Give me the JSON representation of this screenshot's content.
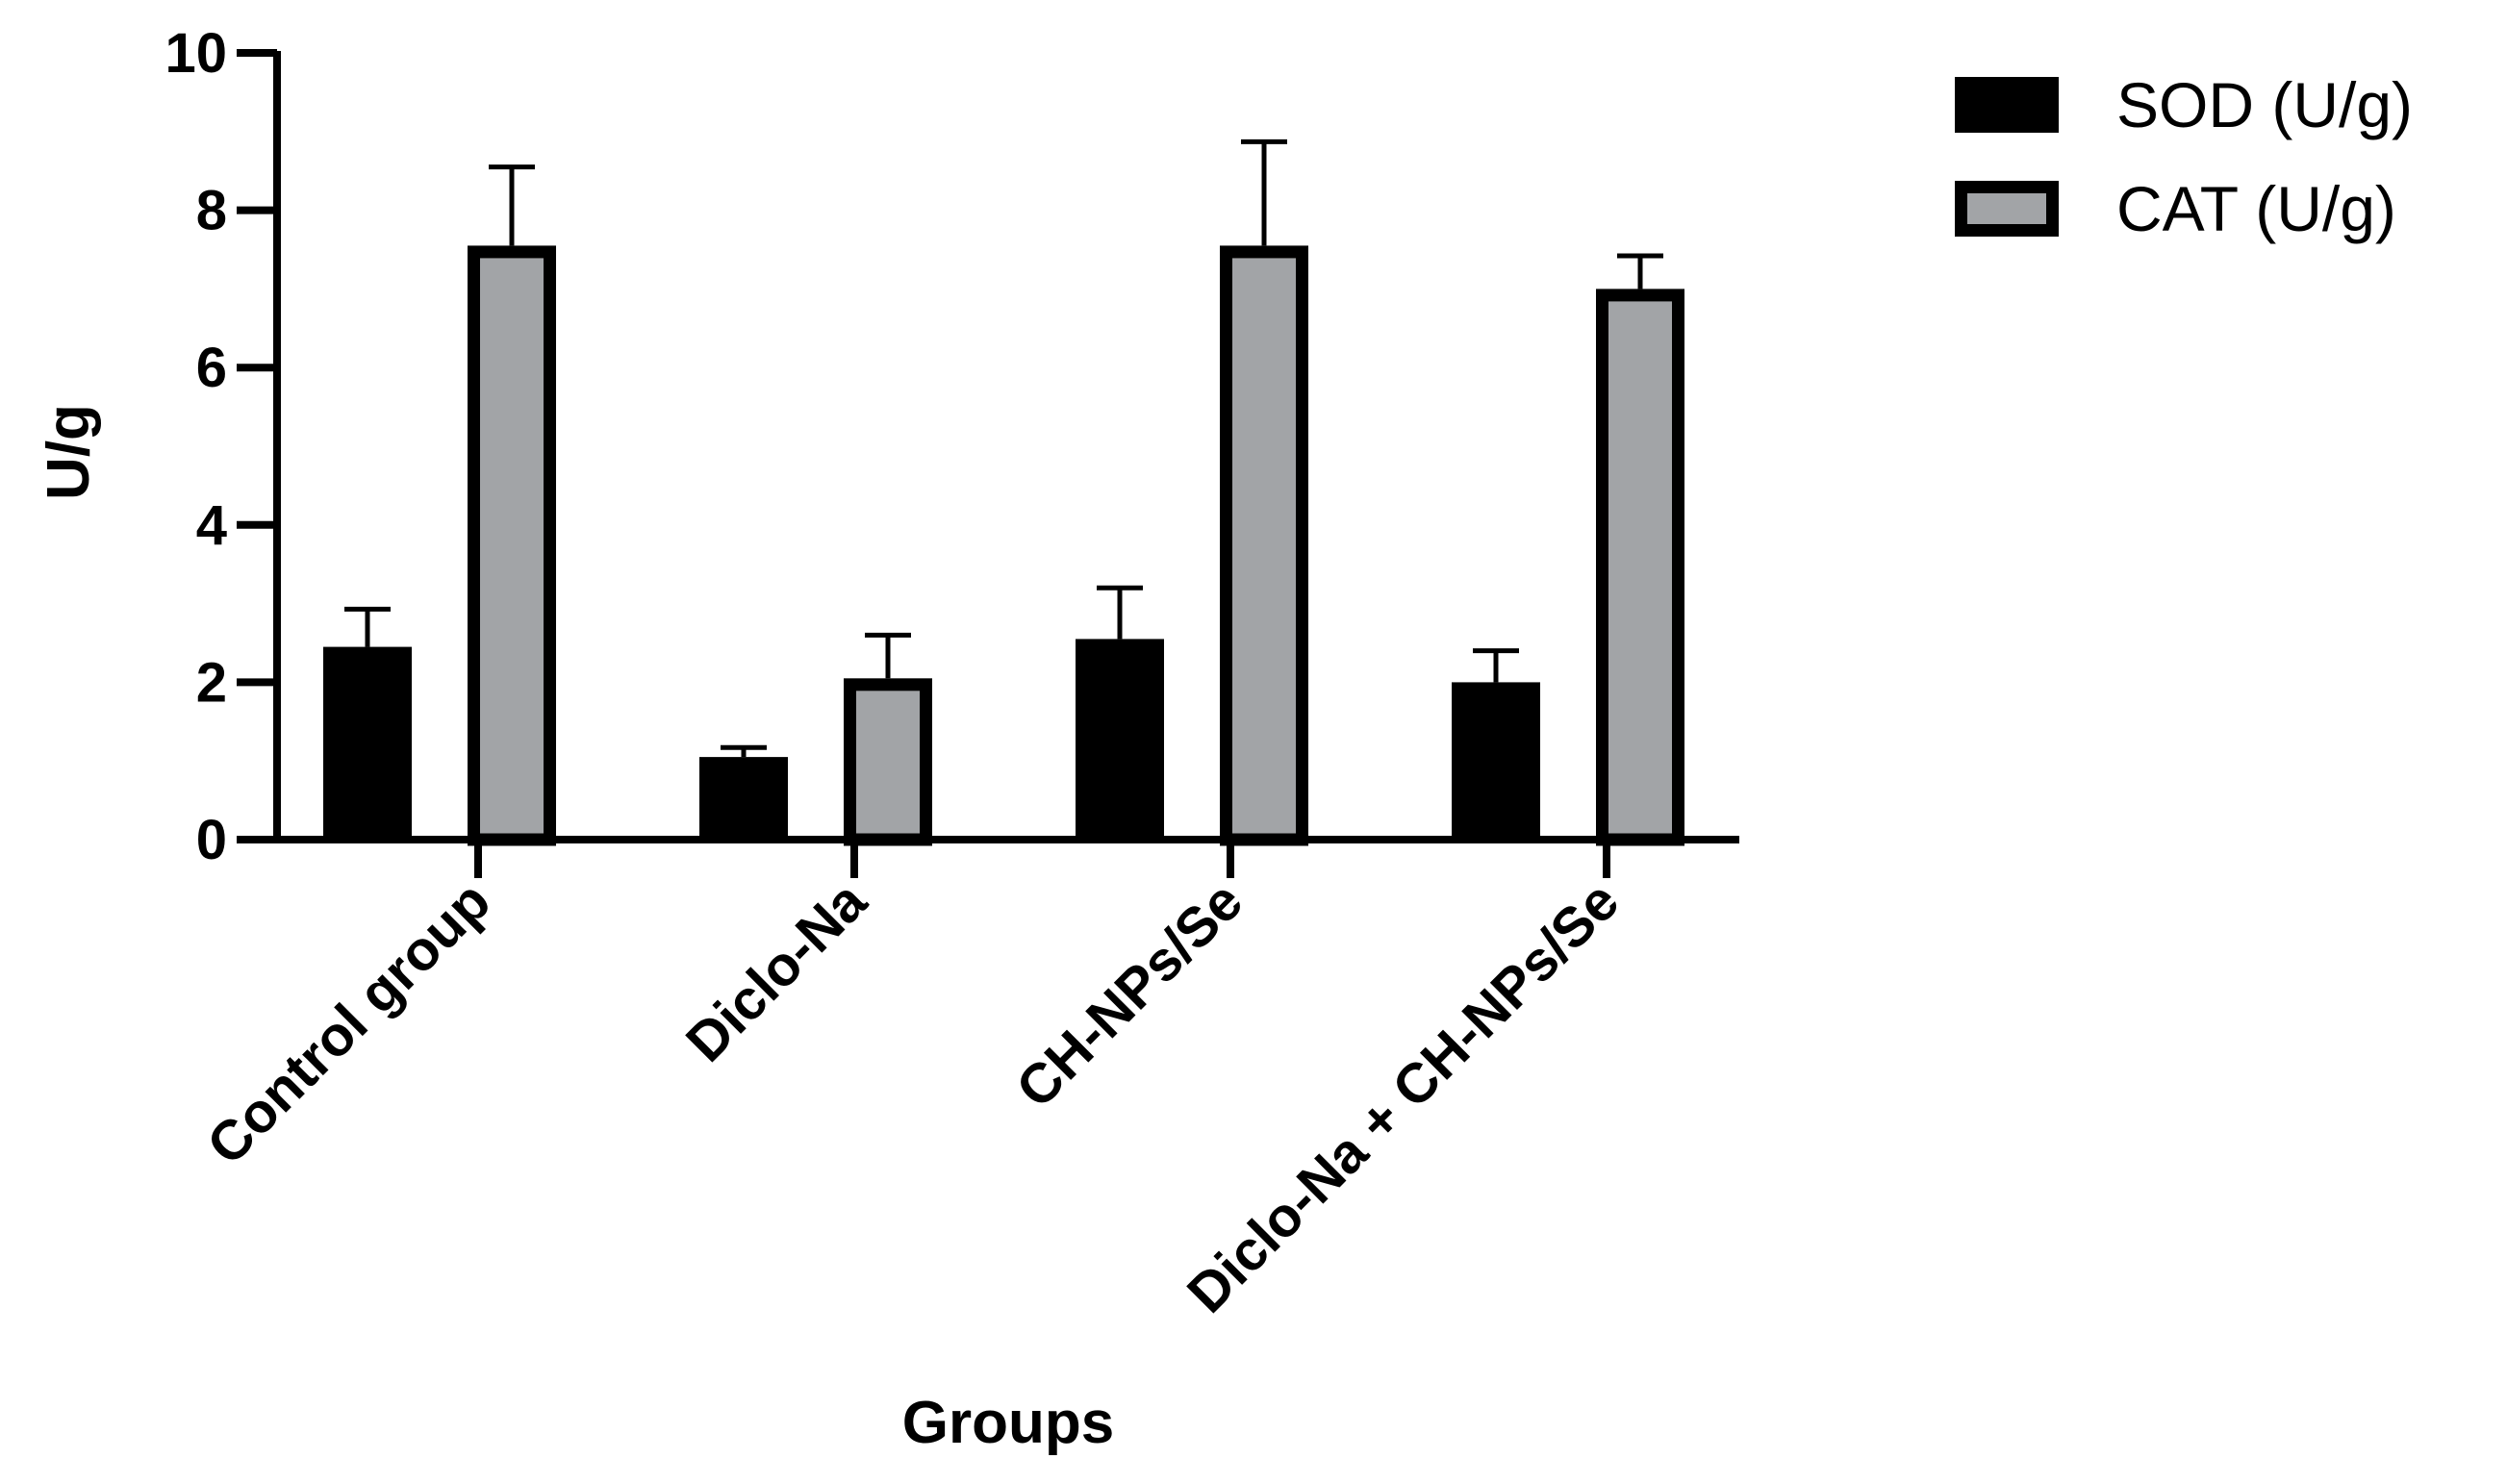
{
  "chart_data": {
    "type": "bar",
    "title": "",
    "xlabel": "Groups",
    "ylabel": "U/g",
    "ylim": [
      0,
      10
    ],
    "yticks": [
      0,
      2,
      4,
      6,
      8,
      10
    ],
    "categories": [
      "Control group",
      "Diclo-Na",
      "CH-NPs/Se",
      "Diclo-Na + CH-NPs/Se"
    ],
    "series": [
      {
        "name": "SOD (U/g)",
        "color": "#000000",
        "values": [
          2.45,
          1.05,
          2.55,
          2.0
        ],
        "errors": [
          0.48,
          0.12,
          0.65,
          0.4
        ]
      },
      {
        "name": "CAT (U/g)",
        "color": "#a2a4a7",
        "values": [
          7.55,
          2.05,
          7.55,
          7.0
        ],
        "errors": [
          1.0,
          0.55,
          1.32,
          0.42
        ]
      }
    ],
    "legend_position": "top-right",
    "grid": false
  }
}
